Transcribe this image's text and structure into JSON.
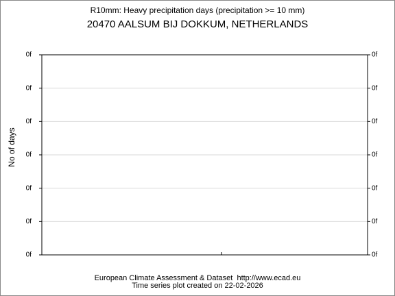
{
  "chart_data": {
    "type": "line",
    "title": "R10mm: Heavy precipitation days (precipitation >= 10 mm)",
    "subtitle": "20470 AALSUM BIJ DOKKUM, NETHERLANDS",
    "y_label": "No of days",
    "series": [],
    "ylim": [
      0,
      6
    ],
    "yticks": [
      {
        "value": 0,
        "label": "0f"
      },
      {
        "value": 1,
        "label": "0f"
      },
      {
        "value": 2,
        "label": "0f"
      },
      {
        "value": 3,
        "label": "0f"
      },
      {
        "value": 4,
        "label": "0f"
      },
      {
        "value": 5,
        "label": "0f"
      },
      {
        "value": 6,
        "label": "0f"
      }
    ],
    "grid": true,
    "footer": [
      "European Climate Assessment & Dataset  http://www.ecad.eu",
      "Time series plot created on 22-02-2026"
    ]
  }
}
